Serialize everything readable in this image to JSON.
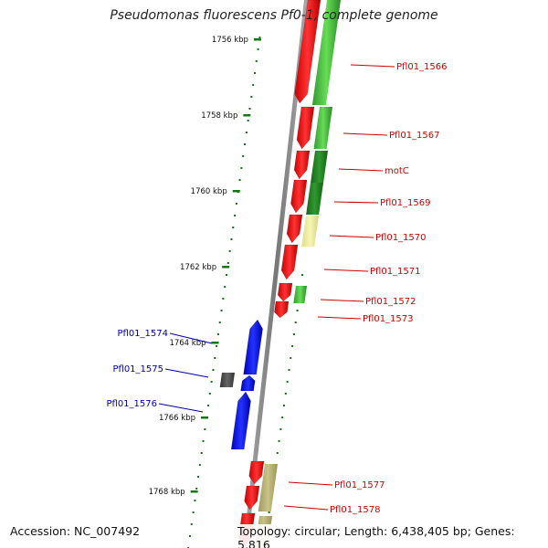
{
  "title": "Pseudomonas fluorescens Pf0-1, complete genome",
  "footer": {
    "accession": "Accession: NC_007492",
    "topology": "Topology: circular; Length: 6,438,405 bp; Genes: 5,816"
  },
  "colors": {
    "forward_gene": "#ee1111",
    "reverse_gene": "#1111ee",
    "forward_label": "#cc0000",
    "reverse_label": "#0000aa",
    "cog_green_light": "#55cc44",
    "cog_green_dark": "#228822",
    "cog_yellow": "#eeee99",
    "cog_khaki": "#bbb577",
    "cog_gray": "#555555",
    "backbone": "#888888",
    "tick": "#117711"
  },
  "ruler": {
    "unit": "kbp",
    "labels": [
      "1756 kbp",
      "1758 kbp",
      "1760 kbp",
      "1762 kbp",
      "1764 kbp",
      "1766 kbp",
      "1768 kbp"
    ]
  },
  "forward_genes": [
    {
      "label": "Pfl01_1566"
    },
    {
      "label": "Pfl01_1567"
    },
    {
      "label": "motC"
    },
    {
      "label": "Pfl01_1569"
    },
    {
      "label": "Pfl01_1570"
    },
    {
      "label": "Pfl01_1571"
    },
    {
      "label": "Pfl01_1572"
    },
    {
      "label": "Pfl01_1573"
    },
    {
      "label": "Pfl01_1577"
    },
    {
      "label": "Pfl01_1578"
    }
  ],
  "reverse_genes": [
    {
      "label": "Pfl01_1574"
    },
    {
      "label": "Pfl01_1575"
    },
    {
      "label": "Pfl01_1576"
    }
  ]
}
